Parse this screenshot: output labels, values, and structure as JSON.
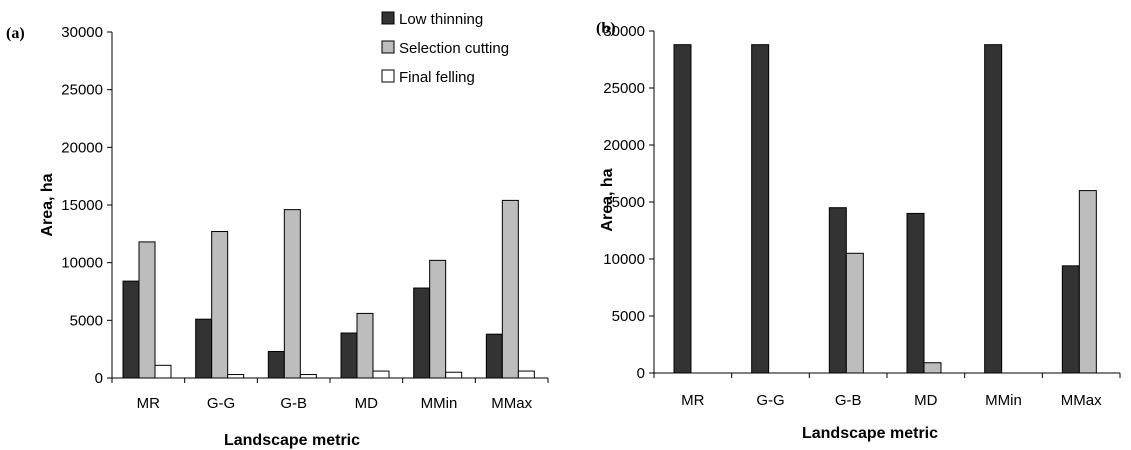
{
  "chart_data": [
    {
      "panel": "(a)",
      "type": "bar",
      "xlabel": "Landscape metric",
      "ylabel": "Area, ha",
      "ylim": [
        0,
        30000
      ],
      "yticks": [
        0,
        5000,
        10000,
        15000,
        20000,
        25000,
        30000
      ],
      "categories": [
        "MR",
        "G-G",
        "G-B",
        "MD",
        "MMin",
        "MMax"
      ],
      "legend": "top-right",
      "series": [
        {
          "name": "Low thinning",
          "color": "#333333",
          "values": [
            8400,
            5100,
            2300,
            3900,
            7800,
            3800
          ]
        },
        {
          "name": "Selection cutting",
          "color": "#bdbdbd",
          "values": [
            11800,
            12700,
            14600,
            5600,
            10200,
            15400
          ]
        },
        {
          "name": "Final felling",
          "color": "#ffffff",
          "values": [
            1100,
            300,
            300,
            600,
            500,
            600
          ]
        }
      ]
    },
    {
      "panel": "(b)",
      "type": "bar",
      "xlabel": "Landscape metric",
      "ylabel": "Area, ha",
      "ylim": [
        0,
        30000
      ],
      "yticks": [
        0,
        5000,
        10000,
        15000,
        20000,
        25000,
        30000
      ],
      "categories": [
        "MR",
        "G-G",
        "G-B",
        "MD",
        "MMin",
        "MMax"
      ],
      "series": [
        {
          "color": "#333333",
          "values": [
            28800,
            28800,
            14500,
            14000,
            28800,
            9400
          ]
        },
        {
          "color": "#bdbdbd",
          "values": [
            0,
            0,
            10500,
            900,
            0,
            16000
          ]
        }
      ]
    }
  ]
}
